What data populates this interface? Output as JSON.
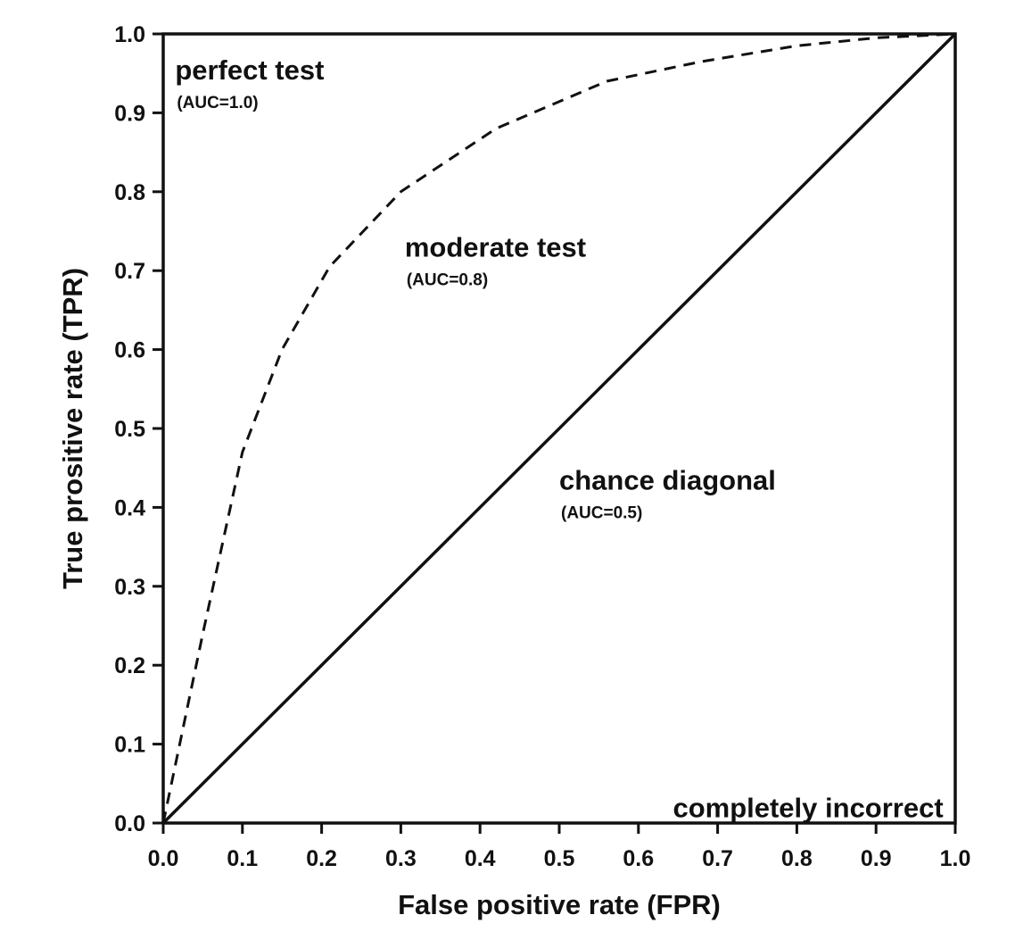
{
  "chart_data": {
    "type": "line",
    "title": "",
    "xlabel": "False positive rate (FPR)",
    "ylabel": "True prositive rate (TPR)",
    "xlim": [
      0.0,
      1.0
    ],
    "ylim": [
      0.0,
      1.0
    ],
    "x_ticks": [
      "0.0",
      "0.1",
      "0.2",
      "0.3",
      "0.4",
      "0.5",
      "0.6",
      "0.7",
      "0.8",
      "0.9",
      "1.0"
    ],
    "y_ticks": [
      "0.0",
      "0.1",
      "0.2",
      "0.3",
      "0.4",
      "0.5",
      "0.6",
      "0.7",
      "0.8",
      "0.9",
      "1.0"
    ],
    "grid": false,
    "legend": "none",
    "series": [
      {
        "style": "dashed",
        "color": "#111111",
        "x": [
          0.0,
          0.05,
          0.1,
          0.15,
          0.21,
          0.3,
          0.42,
          0.56,
          0.68,
          0.8,
          0.9,
          1.0
        ],
        "y": [
          0.0,
          0.24,
          0.47,
          0.6,
          0.705,
          0.8,
          0.88,
          0.94,
          0.965,
          0.985,
          0.995,
          1.0
        ]
      },
      {
        "style": "solid",
        "color": "#111111",
        "x": [
          0.0,
          1.0
        ],
        "y": [
          0.0,
          1.0
        ]
      }
    ],
    "annotations": [
      {
        "id": "perfect",
        "label": "perfect test",
        "sublabel": "(AUC=1.0)",
        "x": 0.015,
        "y": 0.955
      },
      {
        "id": "moderate",
        "label": "moderate test",
        "sublabel": "(AUC=0.8)",
        "x": 0.305,
        "y": 0.73
      },
      {
        "id": "chance",
        "label": "chance diagonal",
        "sublabel": "(AUC=0.5)",
        "x": 0.5,
        "y": 0.435
      },
      {
        "id": "incorrect",
        "label": "completely incorrect",
        "x": 0.985,
        "y": 0.02,
        "anchor": "end"
      }
    ]
  }
}
